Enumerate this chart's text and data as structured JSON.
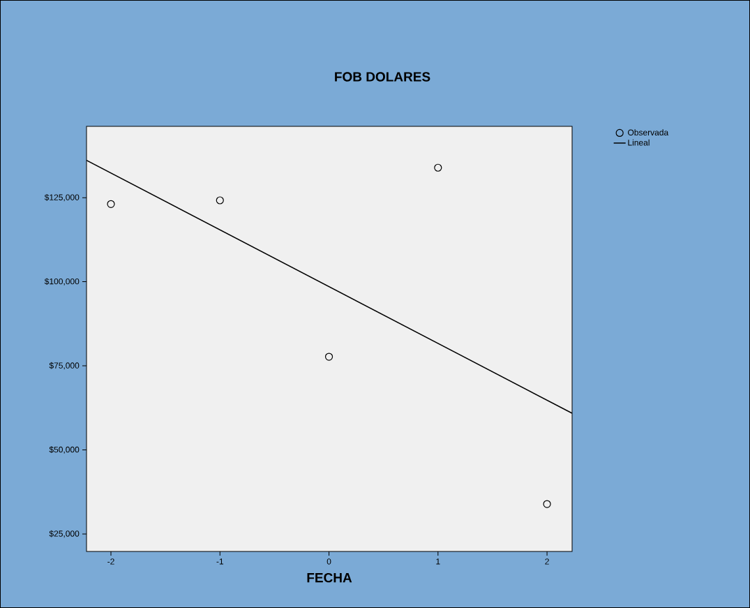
{
  "chart_data": {
    "type": "scatter",
    "title": "FOB DOLARES",
    "xlabel": "FECHA",
    "xlim": [
      -2.224,
      2.23
    ],
    "ylim": [
      19800,
      146200
    ],
    "xticks": [
      -2,
      -1,
      0,
      1,
      2
    ],
    "yticks": [
      {
        "value": 25000,
        "label": "$25,000"
      },
      {
        "value": 50000,
        "label": "$50,000"
      },
      {
        "value": 75000,
        "label": "$75,000"
      },
      {
        "value": 100000,
        "label": "$100,000"
      },
      {
        "value": 125000,
        "label": "$125,000"
      }
    ],
    "legend": "top right",
    "series": [
      {
        "name": "Observada",
        "type": "scatter",
        "marker": "circle",
        "color": "#000000",
        "x": [
          -2,
          -1,
          0,
          1,
          2
        ],
        "values": [
          123100,
          124200,
          77700,
          133900,
          33900
        ]
      },
      {
        "name": "Lineal",
        "type": "line",
        "color": "#000000",
        "x": [
          -2.224,
          2.23
        ],
        "values": [
          136100,
          60900
        ]
      }
    ]
  }
}
